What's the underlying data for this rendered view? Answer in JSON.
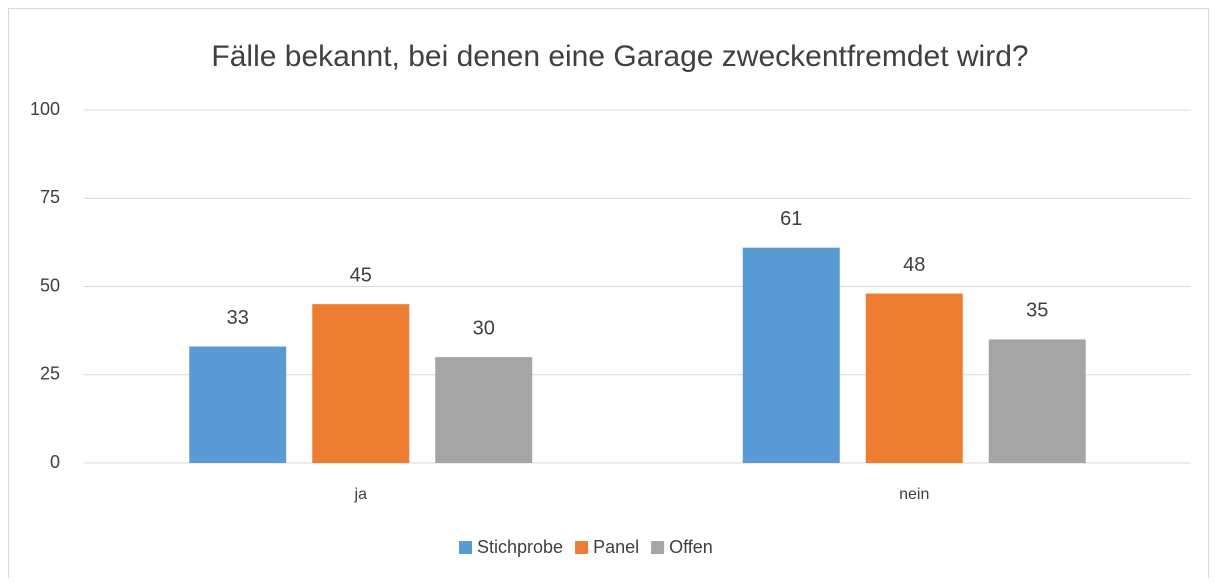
{
  "chart_data": {
    "type": "bar",
    "title": "Fälle bekannt, bei denen eine Garage zweckentfremdet wird?",
    "categories": [
      "ja",
      "nein"
    ],
    "series": [
      {
        "name": "Stichprobe",
        "color": "#5b9bd5",
        "values": [
          33,
          61
        ]
      },
      {
        "name": "Panel",
        "color": "#ed7d31",
        "values": [
          45,
          48
        ]
      },
      {
        "name": "Offen",
        "color": "#a5a5a5",
        "values": [
          30,
          35
        ]
      }
    ],
    "ylim": [
      0,
      100
    ],
    "yticks": [
      0,
      25,
      50,
      75,
      100
    ],
    "grid": true,
    "legend": "bottom"
  }
}
